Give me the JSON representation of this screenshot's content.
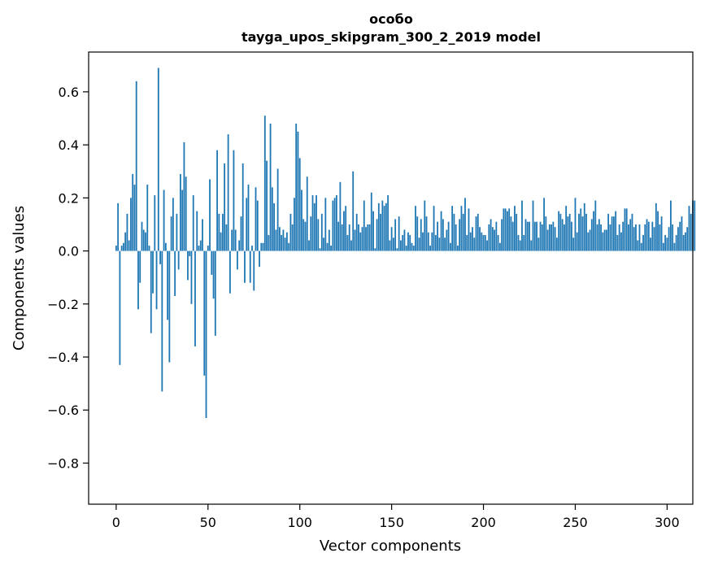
{
  "chart_data": {
    "type": "bar",
    "title": "особо",
    "subtitle": "tayga_upos_skipgram_300_2_2019 model",
    "xlabel": "Vector components",
    "ylabel": "Components values",
    "xlim": [
      -15,
      314
    ],
    "ylim": [
      -0.955,
      0.75
    ],
    "xticks": [
      0,
      50,
      100,
      150,
      200,
      250,
      300
    ],
    "xtick_labels": [
      "0",
      "50",
      "100",
      "150",
      "200",
      "250",
      "300"
    ],
    "yticks": [
      -0.8,
      -0.6,
      -0.4,
      -0.2,
      0.0,
      0.2,
      0.4,
      0.6
    ],
    "ytick_labels": [
      "−0.8",
      "−0.6",
      "−0.4",
      "−0.2",
      "0.0",
      "0.2",
      "0.4",
      "0.6"
    ],
    "bar_color": "#1f77b4",
    "values": [
      0.02,
      0.18,
      -0.43,
      0.02,
      0.03,
      0.07,
      0.14,
      0.04,
      0.2,
      0.29,
      0.25,
      0.64,
      -0.22,
      -0.12,
      0.11,
      0.08,
      0.07,
      0.25,
      0.02,
      -0.31,
      -0.16,
      0.21,
      -0.22,
      0.69,
      -0.05,
      -0.53,
      0.23,
      0.03,
      -0.26,
      -0.42,
      0.13,
      0.2,
      -0.17,
      0.14,
      -0.07,
      0.29,
      0.23,
      0.41,
      0.28,
      -0.11,
      -0.02,
      -0.2,
      0.21,
      -0.36,
      0.15,
      0.02,
      0.04,
      0.12,
      -0.47,
      -0.63,
      0.02,
      0.27,
      -0.09,
      -0.18,
      -0.32,
      0.38,
      0.14,
      0.07,
      0.14,
      0.33,
      0.1,
      0.44,
      -0.16,
      0.08,
      0.38,
      0.08,
      -0.07,
      0.04,
      0.13,
      0.33,
      -0.12,
      0.2,
      0.25,
      -0.12,
      0.02,
      -0.15,
      0.24,
      0.19,
      -0.06,
      0.03,
      0.03,
      0.51,
      0.34,
      0.06,
      0.48,
      0.24,
      0.18,
      0.08,
      0.31,
      0.09,
      0.06,
      0.08,
      0.05,
      0.07,
      0.03,
      0.14,
      0.1,
      0.2,
      0.48,
      0.45,
      0.35,
      0.23,
      0.12,
      0.11,
      0.28,
      0.04,
      0.13,
      0.21,
      0.18,
      0.21,
      0.12,
      0.01,
      0.14,
      0.05,
      0.2,
      0.03,
      0.08,
      0.02,
      0.19,
      0.2,
      0.21,
      0.11,
      0.26,
      0.1,
      0.15,
      0.17,
      0.06,
      0.1,
      0.04,
      0.3,
      0.08,
      0.14,
      0.1,
      0.07,
      0.09,
      0.19,
      0.09,
      0.1,
      0.1,
      0.22,
      0.15,
      0.01,
      0.12,
      0.18,
      0.14,
      0.19,
      0.17,
      0.18,
      0.21,
      0.04,
      0.09,
      0.05,
      0.12,
      0.01,
      0.13,
      0.04,
      0.06,
      0.08,
      0.02,
      0.07,
      0.06,
      0.03,
      0.02,
      0.17,
      0.13,
      0.05,
      0.12,
      0.07,
      0.19,
      0.13,
      0.07,
      0.02,
      0.07,
      0.17,
      0.06,
      0.11,
      0.05,
      0.15,
      0.12,
      0.05,
      0.08,
      0.11,
      0.03,
      0.17,
      0.14,
      0.1,
      0.02,
      0.12,
      0.17,
      0.14,
      0.2,
      0.06,
      0.16,
      0.07,
      0.09,
      0.05,
      0.13,
      0.14,
      0.09,
      0.07,
      0.06,
      0.06,
      0.04,
      0.1,
      0.12,
      0.09,
      0.08,
      0.11,
      0.06,
      0.03,
      0.12,
      0.16,
      0.16,
      0.15,
      0.16,
      0.13,
      0.11,
      0.17,
      0.14,
      0.06,
      0.04,
      0.19,
      0.06,
      0.12,
      0.11,
      0.11,
      0.04,
      0.19,
      0.11,
      0.11,
      0.05,
      0.11,
      0.1,
      0.2,
      0.13,
      0.08,
      0.1,
      0.1,
      0.11,
      0.09,
      0.05,
      0.15,
      0.14,
      0.12,
      0.1,
      0.17,
      0.13,
      0.14,
      0.11,
      0.05,
      0.2,
      0.07,
      0.14,
      0.16,
      0.13,
      0.18,
      0.14,
      0.07,
      0.08,
      0.12,
      0.15,
      0.19,
      0.1,
      0.12,
      0.1,
      0.07,
      0.08,
      0.08,
      0.14,
      0.1,
      0.13,
      0.13,
      0.15,
      0.06,
      0.1,
      0.07,
      0.11,
      0.16,
      0.16,
      0.1,
      0.12,
      0.14,
      0.09,
      0.1,
      0.04,
      0.1,
      0.03,
      0.06,
      0.1,
      0.12,
      0.11,
      0.05,
      0.11,
      0.09,
      0.18,
      0.15,
      0.1,
      0.13,
      0.03,
      0.06,
      0.05,
      0.09,
      0.19,
      0.1,
      0.03,
      0.06,
      0.09,
      0.11,
      0.13,
      0.06,
      0.07,
      0.09,
      0.17,
      0.14,
      0.19,
      0.19
    ]
  }
}
